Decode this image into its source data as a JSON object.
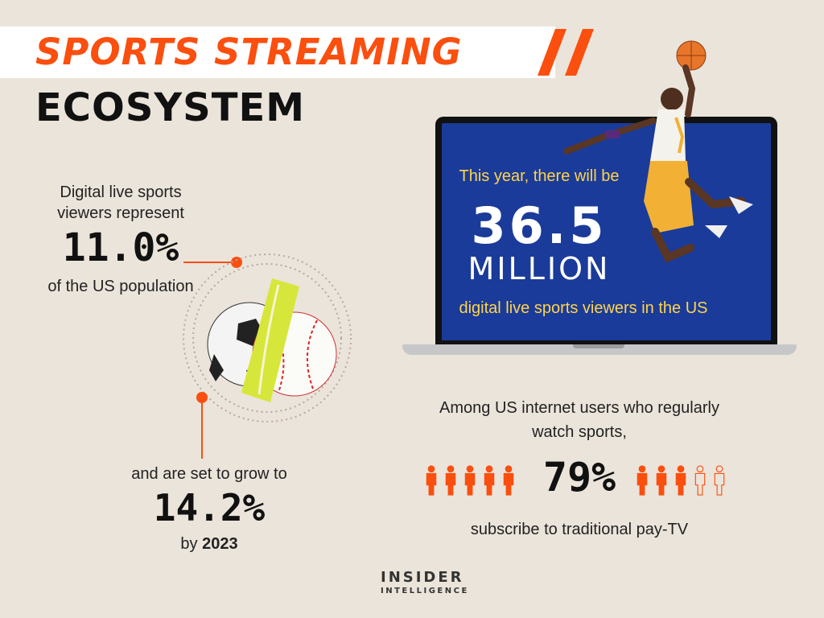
{
  "header": {
    "title_line1": "SPORTS STREAMING",
    "title_line2": "ECOSYSTEM"
  },
  "stat_population": {
    "intro": [
      "Digital live sports",
      "viewers represent"
    ],
    "value": "11.0%",
    "suffix": "of the US population"
  },
  "stat_growth": {
    "intro": "and are set to grow to",
    "value": "14.2%",
    "by_prefix": "by",
    "year": "2023"
  },
  "laptop": {
    "line1": "This year, there will be",
    "number": "36.5",
    "unit": "MILLION",
    "line3": "digital live sports viewers in the US"
  },
  "paytv": {
    "intro": [
      "Among US internet users who regularly",
      "watch sports,"
    ],
    "value": "79%",
    "outro": "subscribe to traditional pay-TV",
    "share": 0.79
  },
  "logo": {
    "line1": "INSIDER",
    "line2": "INTELLIGENCE"
  },
  "colors": {
    "background": "#ebe4da",
    "accent": "#fa4f0f",
    "screen": "#1a3b9a",
    "screen_text": "#ffd44a"
  },
  "icons": [
    "person-icon",
    "basketball-player-image",
    "sports-balls-image"
  ]
}
